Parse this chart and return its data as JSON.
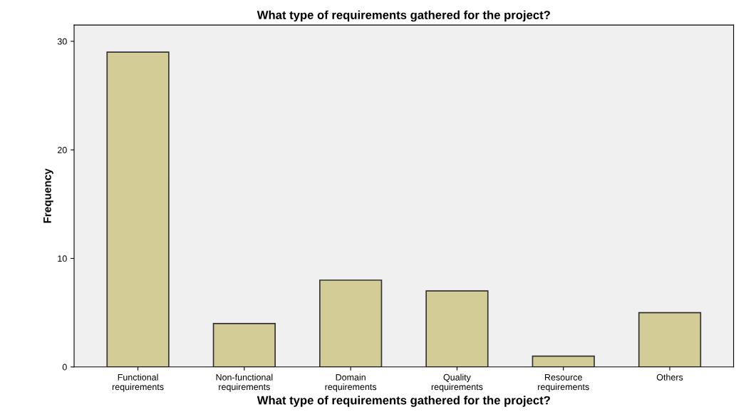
{
  "chart_data": {
    "type": "bar",
    "title": "What type of requirements gathered for the project?",
    "xlabel": "What type of requirements gathered for the project?",
    "ylabel": "Frequency",
    "categories": [
      "Functional\nrequirements",
      "Non-functional\nrequirements",
      "Domain\nrequirements",
      "Quality\nrequirements",
      "Resource\nrequirements",
      "Others"
    ],
    "values": [
      29,
      4,
      8,
      7,
      1,
      5
    ],
    "color": "#d4cc96",
    "ylim": [
      0,
      31.5
    ],
    "yticks": [
      0,
      10,
      20,
      30
    ],
    "grid": false,
    "legend": false
  }
}
